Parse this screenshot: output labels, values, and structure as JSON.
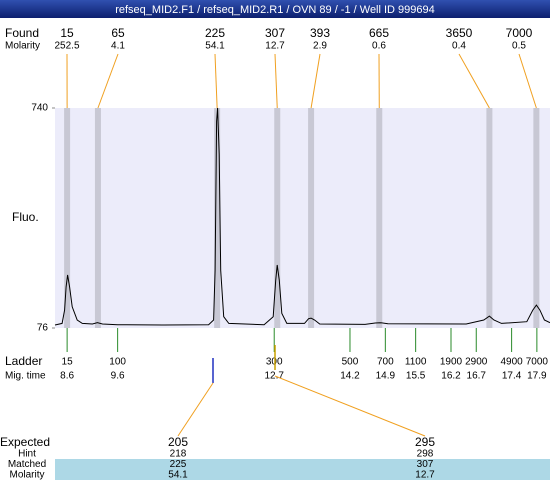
{
  "header": {
    "title": "refseq_MID2.F1 / refseq_MID2.R1 / OVN 89 / -1 / Well ID 999694"
  },
  "chart_data": {
    "type": "electropherogram",
    "y_label": "Fluo.",
    "ylim": [
      76,
      740
    ],
    "yticks": [
      740,
      76
    ],
    "xlim": [
      8.36,
      18.16
    ],
    "found": {
      "label": "Found",
      "sublabel": "Molarity",
      "sizes": [
        15,
        65,
        225,
        307,
        393,
        665,
        3650,
        7000
      ],
      "molarity": [
        252.5,
        4.1,
        54.1,
        12.7,
        2.9,
        0.6,
        0.4,
        0.5
      ],
      "times": [
        8.6,
        9.21,
        11.57,
        12.76,
        13.43,
        14.78,
        16.96,
        17.89
      ]
    },
    "ladder": {
      "label": "Ladder",
      "sublabel": "Mig. time",
      "sizes": [
        15,
        100,
        300,
        500,
        700,
        1100,
        1900,
        2900,
        4900,
        7000
      ],
      "mig_times": [
        8.6,
        9.6,
        12.7,
        14.2,
        14.9,
        15.5,
        16.2,
        16.7,
        17.4,
        17.9
      ]
    },
    "trace": {
      "x": [
        8.36,
        8.5,
        8.55,
        8.58,
        8.61,
        8.65,
        8.7,
        8.8,
        8.9,
        9.1,
        9.2,
        9.3,
        9.6,
        10.5,
        11.4,
        11.5,
        11.53,
        11.56,
        11.58,
        11.61,
        11.64,
        11.7,
        11.8,
        12.5,
        12.68,
        12.73,
        12.76,
        12.8,
        12.85,
        12.95,
        13.3,
        13.38,
        13.43,
        13.5,
        13.6,
        14.5,
        14.7,
        14.8,
        14.95,
        16.5,
        16.85,
        16.96,
        17.05,
        17.2,
        17.7,
        17.82,
        17.89,
        17.96,
        18.05,
        18.16
      ],
      "y": [
        85,
        90,
        130,
        200,
        236,
        200,
        140,
        100,
        90,
        88,
        92,
        88,
        86,
        85,
        86,
        100,
        250,
        700,
        740,
        600,
        250,
        110,
        90,
        86,
        110,
        220,
        266,
        220,
        120,
        90,
        90,
        104,
        106,
        100,
        88,
        87,
        91,
        92,
        89,
        88,
        100,
        112,
        100,
        90,
        95,
        130,
        145,
        130,
        100,
        92
      ]
    }
  },
  "expected": {
    "label": "Expected",
    "sizes": [
      205,
      295
    ],
    "rows": [
      {
        "label": "Hint",
        "values": [
          218,
          298
        ]
      },
      {
        "label": "Matched",
        "values": [
          225,
          307
        ]
      },
      {
        "label": "Molarity",
        "values": [
          54.1,
          12.7
        ]
      }
    ]
  }
}
